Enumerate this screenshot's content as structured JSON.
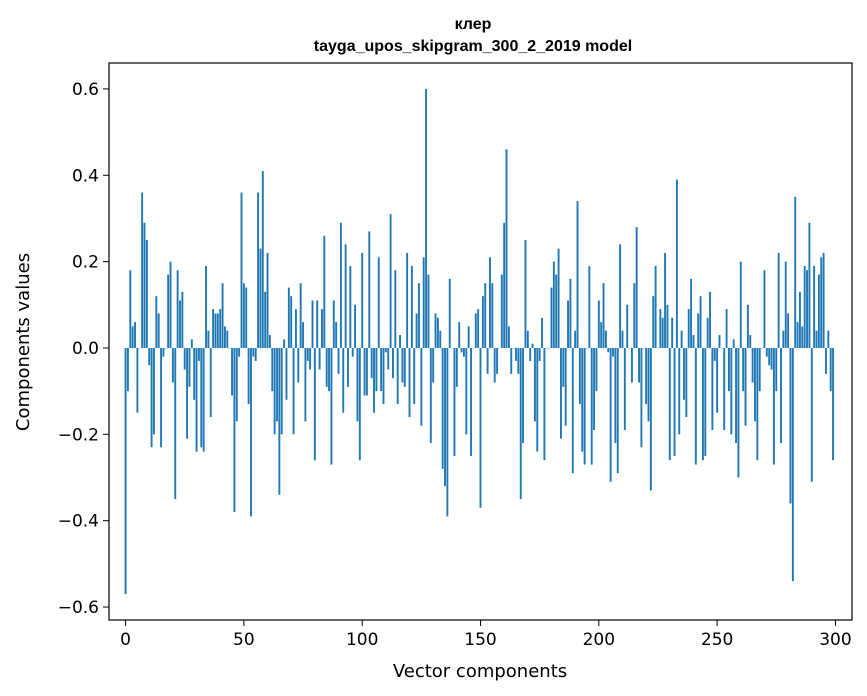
{
  "chart_data": {
    "type": "bar",
    "title": "клер",
    "subtitle": "tayga_upos_skipgram_300_2_2019 model",
    "xlabel": "Vector components",
    "ylabel": "Components values",
    "xlim": [
      -7,
      307
    ],
    "ylim": [
      -0.63,
      0.66
    ],
    "x_ticks": [
      0,
      50,
      100,
      150,
      200,
      250,
      300
    ],
    "x_tick_labels": [
      "0",
      "50",
      "100",
      "150",
      "200",
      "250",
      "300"
    ],
    "y_ticks": [
      -0.6,
      -0.4,
      -0.2,
      0.0,
      0.2,
      0.4,
      0.6
    ],
    "y_tick_labels": [
      "−0.6",
      "−0.4",
      "−0.2",
      "0.0",
      "0.2",
      "0.4",
      "0.6"
    ],
    "bar_color": "#1f77b4",
    "values": [
      -0.57,
      -0.1,
      0.18,
      0.05,
      0.06,
      -0.15,
      0.0,
      0.36,
      0.29,
      0.25,
      -0.04,
      -0.23,
      -0.2,
      0.12,
      0.08,
      -0.23,
      -0.02,
      0.0,
      0.17,
      0.2,
      -0.08,
      -0.35,
      0.18,
      0.11,
      0.13,
      -0.05,
      -0.21,
      -0.09,
      0.02,
      -0.12,
      -0.24,
      -0.03,
      -0.23,
      -0.24,
      0.19,
      0.04,
      -0.16,
      0.09,
      0.08,
      0.08,
      0.09,
      0.15,
      0.05,
      0.04,
      0.0,
      -0.11,
      -0.38,
      -0.17,
      -0.02,
      0.36,
      0.15,
      0.14,
      -0.13,
      -0.39,
      -0.02,
      -0.03,
      0.36,
      0.23,
      0.41,
      0.13,
      0.22,
      0.03,
      -0.1,
      -0.2,
      -0.17,
      -0.34,
      -0.2,
      0.02,
      -0.12,
      0.14,
      0.12,
      -0.2,
      0.09,
      -0.08,
      0.15,
      0.06,
      -0.17,
      -0.03,
      -0.05,
      0.11,
      -0.26,
      0.11,
      -0.05,
      0.09,
      0.26,
      -0.09,
      -0.1,
      -0.27,
      0.11,
      0.06,
      -0.06,
      0.29,
      -0.15,
      0.24,
      -0.09,
      0.19,
      -0.02,
      0.1,
      -0.17,
      -0.26,
      0.22,
      -0.11,
      -0.11,
      0.27,
      -0.07,
      -0.15,
      -0.1,
      0.21,
      -0.1,
      -0.13,
      -0.01,
      -0.05,
      0.31,
      -0.07,
      0.18,
      -0.13,
      0.03,
      -0.08,
      -0.09,
      0.22,
      -0.16,
      0.19,
      -0.13,
      0.08,
      0.15,
      -0.18,
      0.21,
      0.6,
      0.17,
      -0.22,
      -0.08,
      0.08,
      0.07,
      0.04,
      -0.28,
      -0.32,
      -0.39,
      0.16,
      0.0,
      -0.25,
      -0.09,
      0.06,
      -0.01,
      -0.02,
      -0.2,
      0.05,
      -0.25,
      0.0,
      0.08,
      0.09,
      -0.37,
      0.12,
      0.15,
      -0.06,
      0.21,
      0.15,
      -0.08,
      -0.06,
      0.0,
      0.17,
      0.29,
      0.46,
      0.05,
      -0.06,
      0.0,
      -0.03,
      -0.06,
      -0.35,
      -0.22,
      0.25,
      0.04,
      -0.03,
      0.01,
      -0.17,
      -0.24,
      -0.03,
      0.07,
      -0.26,
      0.0,
      0.0,
      0.14,
      0.2,
      0.17,
      0.23,
      -0.21,
      -0.09,
      -0.18,
      0.11,
      0.16,
      -0.29,
      0.04,
      0.34,
      -0.13,
      -0.24,
      -0.27,
      0.0,
      0.19,
      -0.27,
      -0.19,
      -0.1,
      0.11,
      0.06,
      0.15,
      0.04,
      -0.01,
      -0.31,
      -0.02,
      -0.22,
      -0.29,
      0.24,
      0.04,
      -0.19,
      0.1,
      0.0,
      -0.08,
      0.15,
      0.28,
      -0.08,
      -0.23,
      0.0,
      -0.13,
      -0.17,
      -0.33,
      0.12,
      0.19,
      0.0,
      0.09,
      0.07,
      0.22,
      0.1,
      -0.26,
      0.07,
      -0.25,
      0.39,
      -0.2,
      0.04,
      -0.12,
      -0.16,
      0.09,
      0.16,
      0.03,
      -0.27,
      0.08,
      0.12,
      -0.26,
      -0.25,
      0.07,
      0.13,
      -0.19,
      -0.03,
      -0.15,
      0.03,
      0.0,
      -0.19,
      0.09,
      -0.1,
      -0.2,
      0.02,
      -0.22,
      -0.3,
      0.2,
      -0.1,
      -0.18,
      0.1,
      0.03,
      -0.08,
      -0.17,
      -0.26,
      -0.1,
      0.0,
      0.18,
      -0.02,
      -0.04,
      -0.05,
      -0.27,
      -0.1,
      0.22,
      -0.22,
      0.04,
      0.2,
      0.08,
      -0.36,
      -0.54,
      0.35,
      0.06,
      0.13,
      0.05,
      0.19,
      0.18,
      0.29,
      -0.31,
      0.19,
      0.04,
      0.17,
      0.21,
      0.22,
      -0.06,
      0.04,
      -0.1,
      -0.26
    ]
  }
}
